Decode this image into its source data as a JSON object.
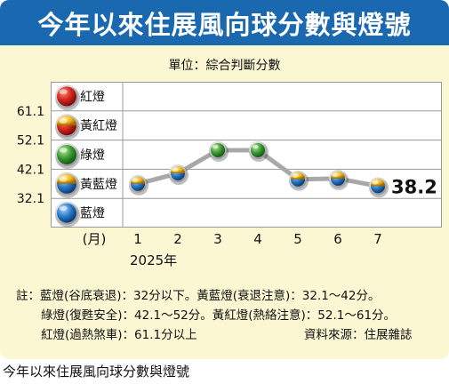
{
  "title": "今年以來住展風向球分數與燈號",
  "unit_label": "單位：綜合判斷分數",
  "lights": [
    {
      "label": "紅燈",
      "icon": "red-light-icon",
      "color": "#d8261f"
    },
    {
      "label": "黃紅燈",
      "icon": "yellow-red-light-icon",
      "color": "#e8a21a"
    },
    {
      "label": "綠燈",
      "icon": "green-light-icon",
      "color": "#3c9a34"
    },
    {
      "label": "黃藍燈",
      "icon": "yellow-blue-light-icon",
      "color": "#e8b51a"
    },
    {
      "label": "藍燈",
      "icon": "blue-light-icon",
      "color": "#2a7ac8"
    }
  ],
  "notes": [
    "註：藍燈(谷底衰退)：32分以下。黃藍燈(衰退注意)：32.1～42分。",
    "綠燈(復甦安全)：42.1～52分。黃紅燈(熱絡注意)：52.1～61分。",
    "紅燈(過熱煞車)：61.1分以上",
    "資料來源：住展雜誌"
  ],
  "caption": "今年以來住展風向球分數與燈號",
  "colors": {
    "banner": "#1a68b0",
    "panel": "#fbf7d3",
    "line": "#a8a8a8"
  },
  "chart_data": {
    "type": "line",
    "title": "今年以來住展風向球分數與燈號",
    "xlabel": "(月)",
    "year_label": "2025年",
    "x": [
      "1",
      "2",
      "3",
      "4",
      "5",
      "6",
      "7"
    ],
    "y_ticks": [
      "61.1",
      "52.1",
      "42.1",
      "32.1"
    ],
    "series": [
      {
        "values": [
          38.8,
          41.6,
          47.8,
          47.8,
          40.0,
          40.2,
          38.2
        ],
        "lights": [
          "黃藍燈",
          "黃藍燈",
          "綠燈",
          "綠燈",
          "黃藍燈",
          "黃藍燈",
          "黃藍燈"
        ]
      }
    ],
    "end_label": "38.2",
    "ylim": [
      27.1,
      66.1
    ],
    "grid": true
  }
}
